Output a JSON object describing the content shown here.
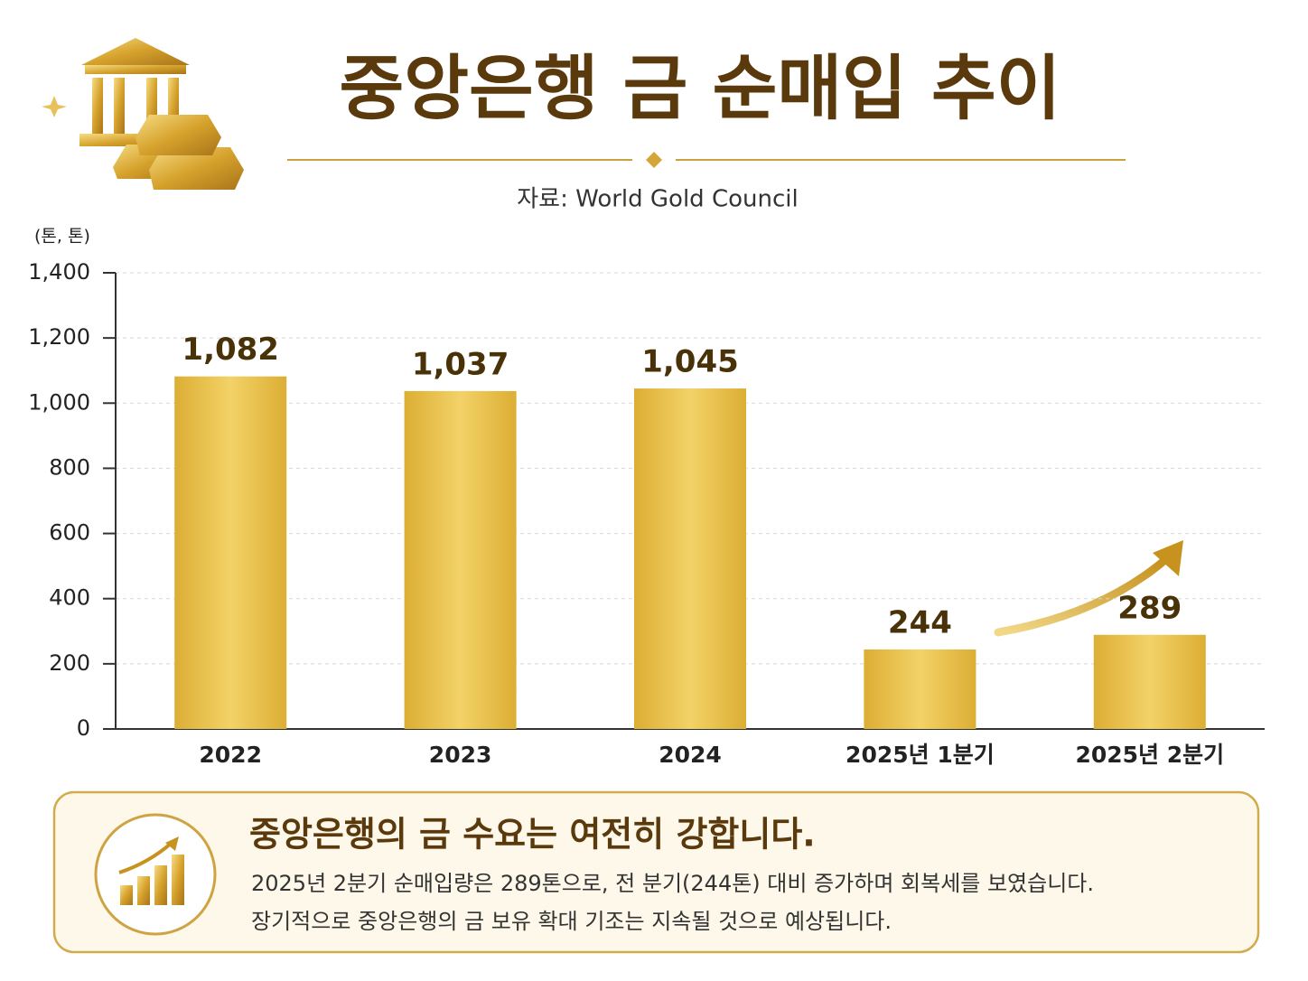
{
  "chart_data": {
    "type": "bar",
    "title": "중앙은행 금 순매입 추이",
    "subtitle": "자료: World Gold Council",
    "y_label": "(톤, 톤)",
    "categories": [
      "2022",
      "2023",
      "2024",
      "2025년 1분기",
      "2025년 2분기"
    ],
    "values": [
      1082,
      1037,
      1045,
      244,
      289
    ],
    "value_labels": [
      "1,082",
      "1,037",
      "1,045",
      "244",
      "289"
    ],
    "color": "#dcae34",
    "ylim": [
      0,
      1400
    ],
    "yticks": [
      0,
      200,
      400,
      600,
      800,
      {
        "value": 1000,
        "label": "1,000"
      },
      {
        "value": 1200,
        "label": "1,200"
      },
      {
        "value": 1400,
        "label": "1,400"
      }
    ],
    "grid": true
  },
  "summary": {
    "title": "중앙은행의 금 수요는 여전히 강합니다.",
    "lines": [
      "2025년 2분기 순매입량은 289톤으로, 전 분기(244톤) 대비 증가하며 회복세를 보였습니다.",
      "장기적으로 중앙은행의 금 보유 확대 기조는 지속될 것으로 예상됩니다."
    ]
  }
}
